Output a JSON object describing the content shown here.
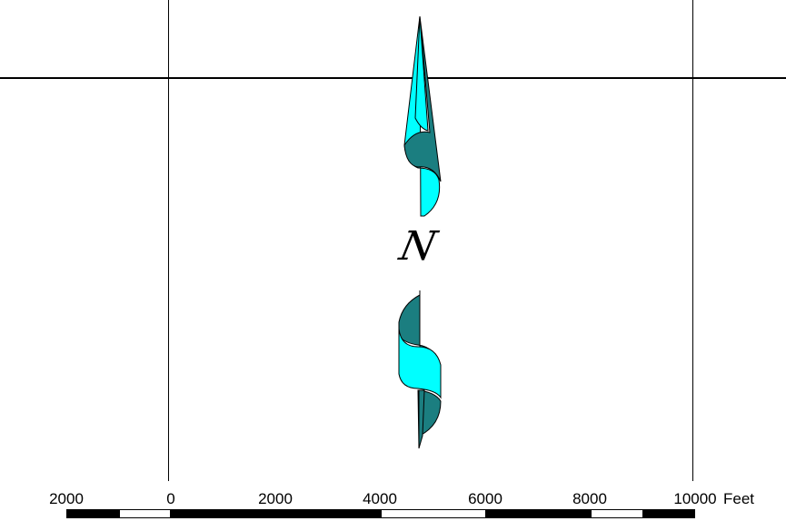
{
  "map": {
    "north_label": "N",
    "north_arrow_colors": {
      "light": "#00ffff",
      "dark": "#1b7e80",
      "outline": "#000000"
    }
  },
  "scale_bar": {
    "unit": "Feet",
    "labels": [
      "2000",
      "0",
      "2000",
      "4000",
      "6000",
      "8000",
      "10000"
    ],
    "fill_pattern": [
      "dark",
      "light",
      "dark",
      "dark",
      "light",
      "dark",
      "light",
      "dark"
    ]
  }
}
